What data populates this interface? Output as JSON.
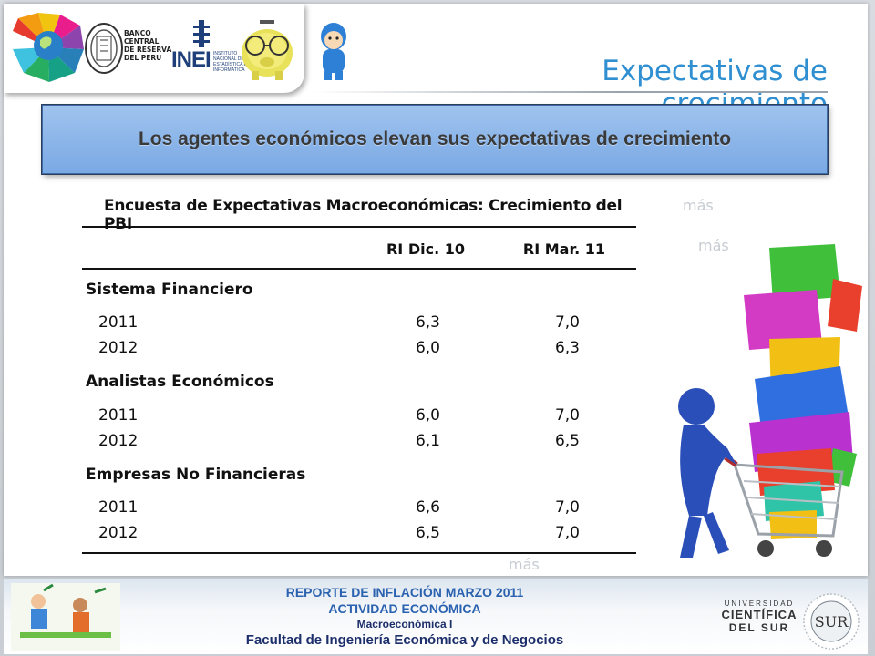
{
  "header": {
    "title": "Expectativas de crecimiento",
    "logos": [
      {
        "name": "colorful-globe-logo"
      },
      {
        "name": "bcrp-logo",
        "text": [
          "BANCO",
          "CENTRAL",
          "DE RESERVA",
          "DEL PERU"
        ]
      },
      {
        "name": "inei-logo",
        "text": "INEI",
        "subtext": [
          "INSTITUTO",
          "NACIONAL DE",
          "ESTADÍSTICA E",
          "INFORMÁTICA"
        ]
      },
      {
        "name": "piggy-bank-glasses-logo"
      },
      {
        "name": "pocoyo-character-icon"
      }
    ]
  },
  "banner": {
    "text": "Los agentes económicos elevan sus expectativas de crecimiento"
  },
  "table": {
    "title": "Encuesta de Expectativas Macroeconómicas: Crecimiento del PBI",
    "columns": [
      "RI Dic. 10",
      "RI Mar. 11"
    ],
    "groups": [
      {
        "name": "Sistema Financiero",
        "rows": [
          {
            "year": "2011",
            "values": [
              "6,3",
              "7,0"
            ]
          },
          {
            "year": "2012",
            "values": [
              "6,0",
              "6,3"
            ]
          }
        ]
      },
      {
        "name": "Analistas Económicos",
        "rows": [
          {
            "year": "2011",
            "values": [
              "6,0",
              "7,0"
            ]
          },
          {
            "year": "2012",
            "values": [
              "6,1",
              "6,5"
            ]
          }
        ]
      },
      {
        "name": "Empresas No Financieras",
        "rows": [
          {
            "year": "2011",
            "values": [
              "6,6",
              "7,0"
            ]
          },
          {
            "year": "2012",
            "values": [
              "6,5",
              "7,0"
            ]
          }
        ]
      }
    ]
  },
  "background_words": [
    "más",
    "más",
    "más"
  ],
  "illustration": {
    "name": "shopping-cart-boxes-illustration"
  },
  "footer": {
    "line1": "REPORTE DE INFLACIÓN MARZO 2011",
    "line2": "ACTIVIDAD ECONÓMICA",
    "line3": "Macroeconómica I",
    "line4": "Facultad de Ingeniería Económica y de Negocios",
    "university": {
      "line1": "UNIVERSIDAD",
      "line2": "CIENTÍFICA",
      "line3": "DEL SUR",
      "seal_text": "SUR"
    }
  },
  "colors": {
    "title": "#2f8fd1",
    "banner_bg": "#8cb6ea",
    "footer_blue": "#2a62b0",
    "footer_navy": "#1c2f6b"
  }
}
